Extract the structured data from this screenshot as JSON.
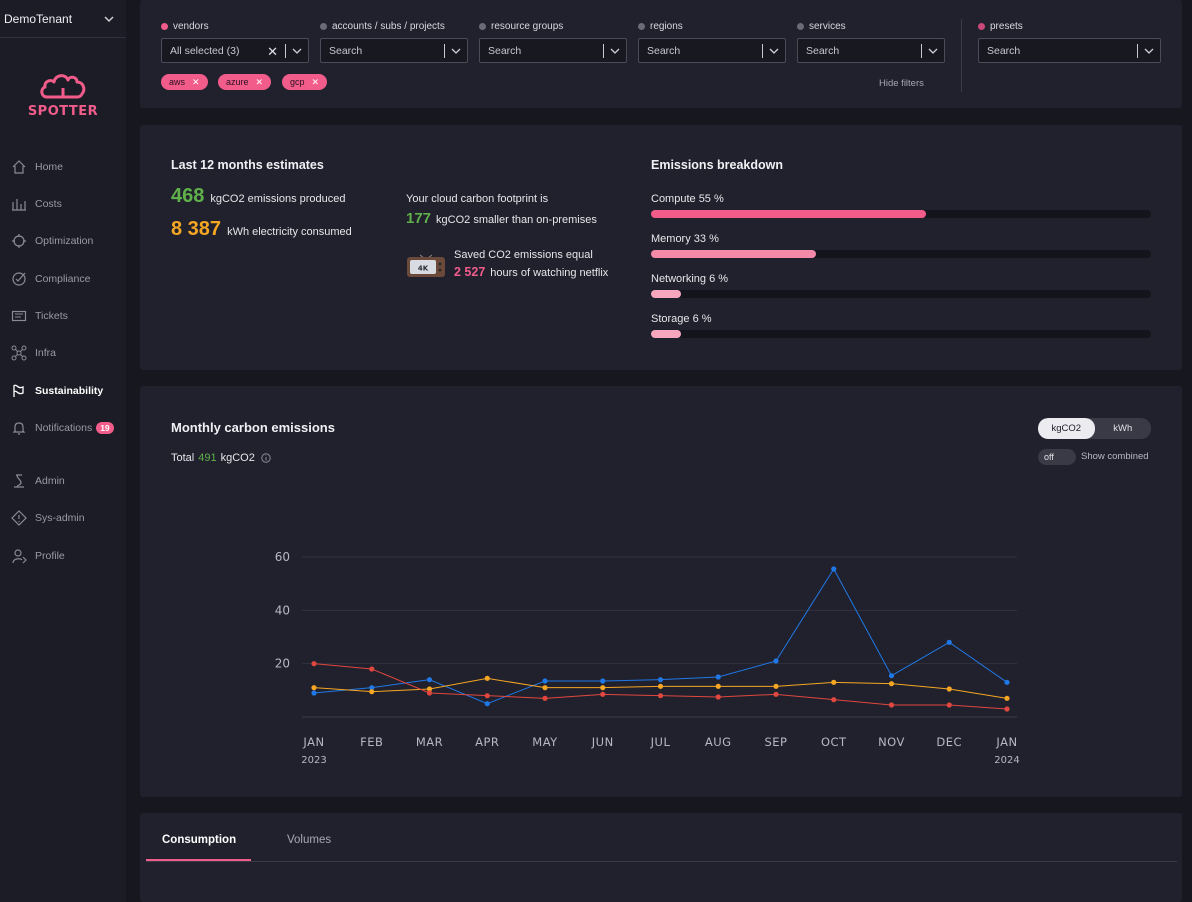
{
  "sidebar": {
    "tenant": "DemoTenant",
    "logo_text": "SPOTTER",
    "items": [
      {
        "label": "Home",
        "icon": "home-icon"
      },
      {
        "label": "Costs",
        "icon": "costs-icon"
      },
      {
        "label": "Optimization",
        "icon": "optimization-icon"
      },
      {
        "label": "Compliance",
        "icon": "compliance-icon"
      },
      {
        "label": "Tickets",
        "icon": "tickets-icon"
      },
      {
        "label": "Infra",
        "icon": "infra-icon"
      },
      {
        "label": "Sustainability",
        "icon": "sustainability-icon",
        "active": true
      },
      {
        "label": "Notifications",
        "icon": "bell-icon",
        "badge": "19"
      },
      {
        "label": "Admin",
        "icon": "admin-icon"
      },
      {
        "label": "Sys-admin",
        "icon": "sys-admin-icon"
      },
      {
        "label": "Profile",
        "icon": "profile-icon"
      }
    ]
  },
  "filters": {
    "vendors": {
      "label": "vendors",
      "value": "All selected (3)"
    },
    "accounts": {
      "label": "accounts / subs / projects",
      "placeholder": "Search"
    },
    "resource_groups": {
      "label": "resource groups",
      "placeholder": "Search"
    },
    "regions": {
      "label": "regions",
      "placeholder": "Search"
    },
    "services": {
      "label": "services",
      "placeholder": "Search"
    },
    "presets": {
      "label": "presets",
      "placeholder": "Search"
    },
    "chips": [
      "aws",
      "azure",
      "gcp"
    ],
    "hide_filters": "Hide filters"
  },
  "estimates": {
    "title": "Last 12 months estimates",
    "emissions_value": "468",
    "emissions_label": "kgCO2 emissions produced",
    "electricity_value": "8 387",
    "electricity_label": "kWh electricity consumed",
    "footprint_title": "Your cloud carbon footprint is",
    "footprint_value": "177",
    "footprint_label": "kgCO2 smaller than on-premises",
    "saved_title": "Saved CO2 emissions equal",
    "saved_value": "2 527",
    "saved_label": "hours of watching netflix",
    "tv_text": "4K"
  },
  "breakdown": {
    "title": "Emissions breakdown",
    "items": [
      {
        "label": "Compute 55 %",
        "percent": 55,
        "color": "#f25c8b"
      },
      {
        "label": "Memory 33 %",
        "percent": 33,
        "color": "#f48aa8"
      },
      {
        "label": "Networking 6 %",
        "percent": 6,
        "color": "#f7a6bd"
      },
      {
        "label": "Storage 6 %",
        "percent": 6,
        "color": "#f7a6bd"
      }
    ]
  },
  "monthly": {
    "title": "Monthly carbon emissions",
    "total_prefix": "Total",
    "total_value": "491",
    "total_unit": "kgCO2",
    "unit_toggle": [
      "kgCO2",
      "kWh"
    ],
    "switch_state": "off",
    "switch_label": "Show combined"
  },
  "chart_data": {
    "type": "line",
    "x": [
      "JAN",
      "FEB",
      "MAR",
      "APR",
      "MAY",
      "JUN",
      "JUL",
      "AUG",
      "SEP",
      "OCT",
      "NOV",
      "DEC",
      "JAN"
    ],
    "x_sublabels": [
      "2023",
      "",
      "",
      "",
      "",
      "",
      "",
      "",
      "",
      "",
      "",
      "",
      "2024"
    ],
    "yticks": [
      20,
      40,
      60
    ],
    "ylim": [
      0,
      66
    ],
    "grid": true,
    "series": [
      {
        "color": "#1f78e6",
        "values": [
          9,
          11,
          14,
          5,
          13.5,
          13.5,
          14,
          15,
          21,
          55.5,
          15.5,
          28,
          13
        ]
      },
      {
        "color": "#f5a623",
        "values": [
          11,
          9.5,
          10.5,
          14.5,
          11,
          11,
          11.5,
          11.5,
          11.5,
          13,
          12.5,
          10.5,
          7
        ]
      },
      {
        "color": "#e0473e",
        "values": [
          20,
          18,
          9,
          8,
          7,
          8.5,
          8,
          7.5,
          8.5,
          6.5,
          4.5,
          4.5,
          3
        ]
      }
    ]
  },
  "tabs": [
    "Consumption",
    "Volumes"
  ]
}
